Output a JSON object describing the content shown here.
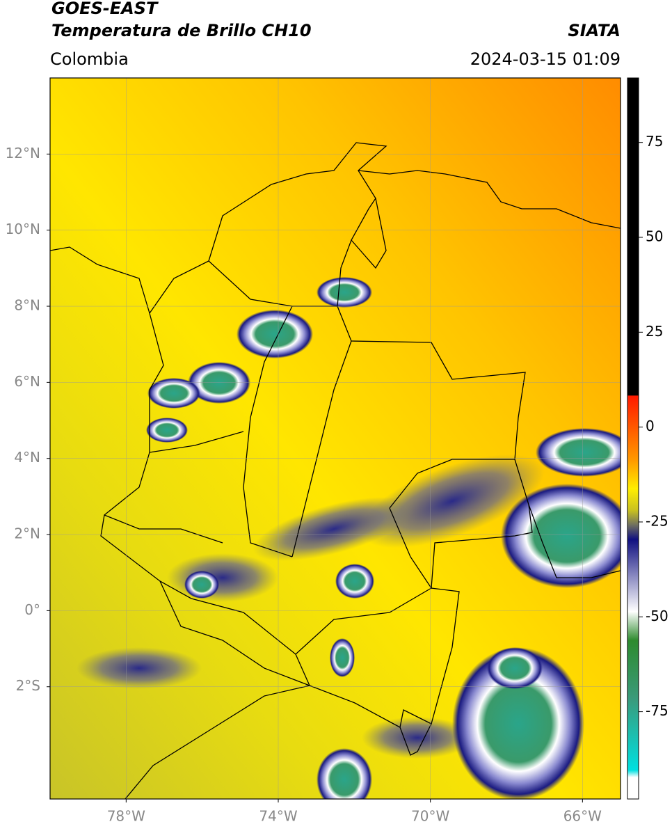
{
  "header": {
    "title": "GOES-EAST",
    "subtitle": "Temperatura de Brillo CH10",
    "region": "Colombia",
    "source": "SIATA",
    "datetime": "2024-03-15 01:09"
  },
  "map": {
    "xlim": [
      -80,
      -65
    ],
    "ylim": [
      -4.95,
      14
    ],
    "xticks": [
      {
        "value": -78,
        "label": "78°W"
      },
      {
        "value": -74,
        "label": "74°W"
      },
      {
        "value": -70,
        "label": "70°W"
      },
      {
        "value": -66,
        "label": "66°W"
      }
    ],
    "yticks": [
      {
        "value": 12,
        "label": "12°N"
      },
      {
        "value": 10,
        "label": "10°N"
      },
      {
        "value": 8,
        "label": "8°N"
      },
      {
        "value": 6,
        "label": "6°N"
      },
      {
        "value": 4,
        "label": "4°N"
      },
      {
        "value": 2,
        "label": "2°N"
      },
      {
        "value": 0,
        "label": "0°"
      },
      {
        "value": -2,
        "label": "2°S"
      }
    ]
  },
  "colorbar": {
    "lim": [
      -98,
      92
    ],
    "ticks": [
      75,
      50,
      25,
      0,
      -25,
      -50,
      -75
    ]
  }
}
